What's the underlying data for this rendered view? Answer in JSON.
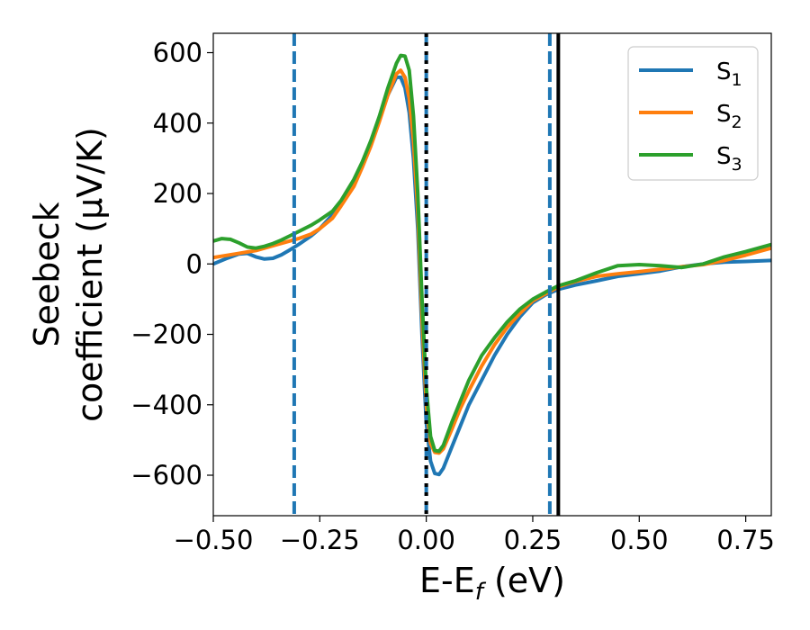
{
  "chart_data": {
    "type": "line",
    "xlabel": {
      "main": "E-E",
      "sub": "f",
      "tail": " (eV)"
    },
    "ylabel": {
      "line1": "Seebeck",
      "line2": "coefficient  (μV/K)"
    },
    "xlim": [
      -0.5,
      0.81
    ],
    "ylim": [
      -715,
      655
    ],
    "xticks": [
      -0.5,
      -0.25,
      0.0,
      0.25,
      0.5,
      0.75
    ],
    "xtick_labels": [
      "−0.50",
      "−0.25",
      "0.00",
      "0.25",
      "0.50",
      "0.75"
    ],
    "yticks": [
      -600,
      -400,
      -200,
      0,
      200,
      400,
      600
    ],
    "ytick_labels": [
      "−600",
      "−400",
      "−200",
      "0",
      "200",
      "400",
      "600"
    ],
    "grid": false,
    "legend_position": "top-right",
    "series": [
      {
        "name": "S",
        "sub": "1",
        "color": "#1f77b4",
        "points": [
          [
            -0.5,
            0
          ],
          [
            -0.47,
            15
          ],
          [
            -0.44,
            28
          ],
          [
            -0.42,
            30
          ],
          [
            -0.4,
            20
          ],
          [
            -0.38,
            14
          ],
          [
            -0.36,
            16
          ],
          [
            -0.34,
            26
          ],
          [
            -0.32,
            40
          ],
          [
            -0.3,
            55
          ],
          [
            -0.27,
            80
          ],
          [
            -0.25,
            100
          ],
          [
            -0.22,
            140
          ],
          [
            -0.2,
            170
          ],
          [
            -0.17,
            230
          ],
          [
            -0.15,
            280
          ],
          [
            -0.13,
            340
          ],
          [
            -0.11,
            410
          ],
          [
            -0.09,
            480
          ],
          [
            -0.07,
            530
          ],
          [
            -0.06,
            530
          ],
          [
            -0.05,
            500
          ],
          [
            -0.04,
            430
          ],
          [
            -0.03,
            300
          ],
          [
            -0.02,
            100
          ],
          [
            -0.01,
            -200
          ],
          [
            0.0,
            -450
          ],
          [
            0.01,
            -560
          ],
          [
            0.02,
            -595
          ],
          [
            0.03,
            -598
          ],
          [
            0.04,
            -580
          ],
          [
            0.06,
            -520
          ],
          [
            0.08,
            -460
          ],
          [
            0.1,
            -400
          ],
          [
            0.13,
            -330
          ],
          [
            0.16,
            -260
          ],
          [
            0.19,
            -200
          ],
          [
            0.22,
            -150
          ],
          [
            0.25,
            -110
          ],
          [
            0.28,
            -88
          ],
          [
            0.31,
            -72
          ],
          [
            0.35,
            -60
          ],
          [
            0.4,
            -48
          ],
          [
            0.45,
            -35
          ],
          [
            0.5,
            -28
          ],
          [
            0.55,
            -20
          ],
          [
            0.6,
            -8
          ],
          [
            0.65,
            0
          ],
          [
            0.7,
            5
          ],
          [
            0.75,
            7
          ],
          [
            0.81,
            10
          ]
        ]
      },
      {
        "name": "S",
        "sub": "2",
        "color": "#ff7f0e",
        "points": [
          [
            -0.5,
            18
          ],
          [
            -0.45,
            28
          ],
          [
            -0.4,
            38
          ],
          [
            -0.35,
            55
          ],
          [
            -0.3,
            72
          ],
          [
            -0.27,
            85
          ],
          [
            -0.25,
            100
          ],
          [
            -0.22,
            130
          ],
          [
            -0.2,
            165
          ],
          [
            -0.17,
            220
          ],
          [
            -0.15,
            275
          ],
          [
            -0.13,
            335
          ],
          [
            -0.11,
            405
          ],
          [
            -0.09,
            480
          ],
          [
            -0.07,
            540
          ],
          [
            -0.06,
            550
          ],
          [
            -0.05,
            530
          ],
          [
            -0.04,
            470
          ],
          [
            -0.03,
            350
          ],
          [
            -0.02,
            150
          ],
          [
            -0.01,
            -150
          ],
          [
            0.0,
            -400
          ],
          [
            0.01,
            -510
          ],
          [
            0.02,
            -535
          ],
          [
            0.03,
            -537
          ],
          [
            0.04,
            -525
          ],
          [
            0.06,
            -470
          ],
          [
            0.08,
            -410
          ],
          [
            0.1,
            -360
          ],
          [
            0.13,
            -290
          ],
          [
            0.16,
            -230
          ],
          [
            0.19,
            -180
          ],
          [
            0.22,
            -140
          ],
          [
            0.25,
            -105
          ],
          [
            0.28,
            -85
          ],
          [
            0.31,
            -65
          ],
          [
            0.35,
            -50
          ],
          [
            0.4,
            -35
          ],
          [
            0.45,
            -28
          ],
          [
            0.5,
            -22
          ],
          [
            0.55,
            -15
          ],
          [
            0.6,
            -8
          ],
          [
            0.65,
            -2
          ],
          [
            0.7,
            10
          ],
          [
            0.75,
            25
          ],
          [
            0.81,
            45
          ]
        ]
      },
      {
        "name": "S",
        "sub": "3",
        "color": "#2ca02c",
        "points": [
          [
            -0.5,
            65
          ],
          [
            -0.48,
            72
          ],
          [
            -0.46,
            70
          ],
          [
            -0.44,
            60
          ],
          [
            -0.42,
            48
          ],
          [
            -0.4,
            45
          ],
          [
            -0.38,
            50
          ],
          [
            -0.36,
            58
          ],
          [
            -0.34,
            68
          ],
          [
            -0.32,
            80
          ],
          [
            -0.3,
            92
          ],
          [
            -0.27,
            110
          ],
          [
            -0.25,
            125
          ],
          [
            -0.22,
            150
          ],
          [
            -0.2,
            180
          ],
          [
            -0.17,
            240
          ],
          [
            -0.15,
            290
          ],
          [
            -0.13,
            350
          ],
          [
            -0.11,
            420
          ],
          [
            -0.09,
            500
          ],
          [
            -0.07,
            570
          ],
          [
            -0.06,
            592
          ],
          [
            -0.05,
            590
          ],
          [
            -0.04,
            550
          ],
          [
            -0.03,
            420
          ],
          [
            -0.02,
            200
          ],
          [
            -0.01,
            -100
          ],
          [
            0.0,
            -350
          ],
          [
            0.01,
            -490
          ],
          [
            0.02,
            -530
          ],
          [
            0.03,
            -532
          ],
          [
            0.04,
            -515
          ],
          [
            0.06,
            -450
          ],
          [
            0.08,
            -390
          ],
          [
            0.1,
            -330
          ],
          [
            0.13,
            -260
          ],
          [
            0.16,
            -210
          ],
          [
            0.19,
            -165
          ],
          [
            0.22,
            -128
          ],
          [
            0.25,
            -100
          ],
          [
            0.28,
            -80
          ],
          [
            0.31,
            -62
          ],
          [
            0.35,
            -48
          ],
          [
            0.4,
            -25
          ],
          [
            0.45,
            -5
          ],
          [
            0.5,
            -2
          ],
          [
            0.55,
            -5
          ],
          [
            0.6,
            -10
          ],
          [
            0.65,
            0
          ],
          [
            0.7,
            20
          ],
          [
            0.75,
            35
          ],
          [
            0.81,
            55
          ]
        ]
      }
    ],
    "vlines": [
      {
        "x": -0.31,
        "color": "#1f77b4",
        "style": "dashed"
      },
      {
        "x": 0.0,
        "color": "#1f77b4",
        "style": "dashed"
      },
      {
        "x": 0.0,
        "color": "#000000",
        "style": "dotted"
      },
      {
        "x": 0.29,
        "color": "#1f77b4",
        "style": "dashed"
      },
      {
        "x": 0.31,
        "color": "#000000",
        "style": "solid"
      }
    ]
  }
}
